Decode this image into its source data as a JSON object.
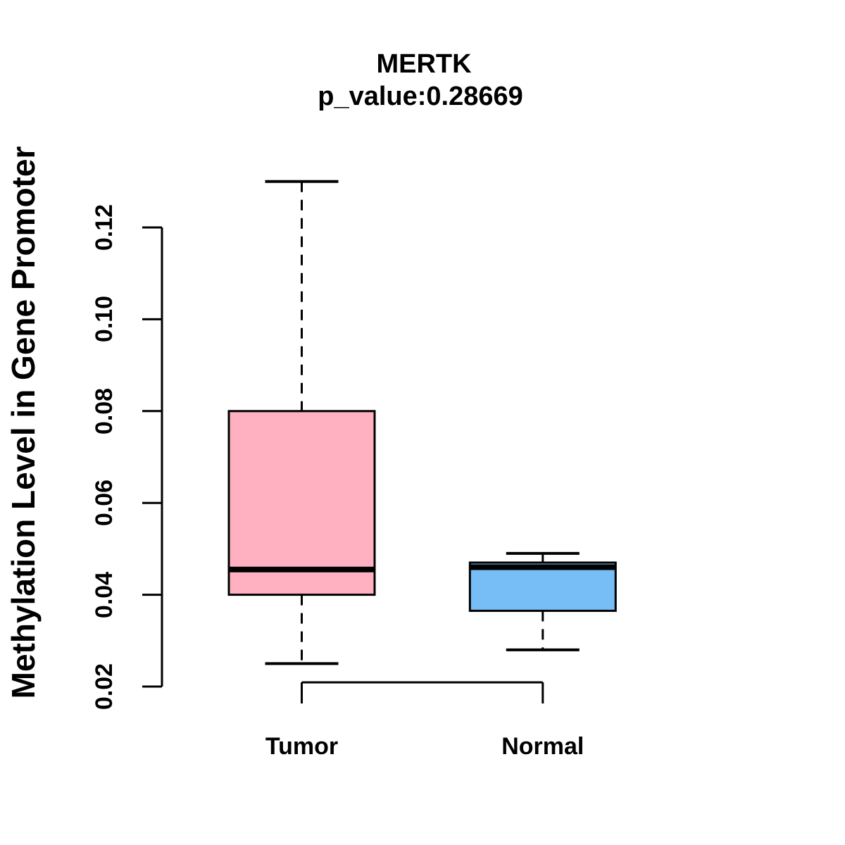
{
  "chart_data": {
    "type": "boxplot",
    "title": "MERTK",
    "subtitle": "p_value:0.28669",
    "ylabel": "Methylation Level in Gene Promoter",
    "xlabel": "",
    "ytick_labels": [
      "0.02",
      "0.04",
      "0.06",
      "0.08",
      "0.10",
      "0.12"
    ],
    "ytick_values": [
      0.02,
      0.04,
      0.06,
      0.08,
      0.1,
      0.12
    ],
    "ylim": [
      0.015,
      0.133
    ],
    "grid": false,
    "legend": null,
    "colors": {
      "background": "#FFFFFF",
      "stroke": "#000000",
      "text": "#000000",
      "tumor_fill": "#FFB1C1",
      "normal_fill": "#77BEF7"
    },
    "groups": [
      {
        "label": "Tumor",
        "fill_color": "#FFB1C1",
        "stats": {
          "lower_whisker": 0.025,
          "q1": 0.04,
          "median": 0.0455,
          "q3": 0.08,
          "upper_whisker": 0.13
        }
      },
      {
        "label": "Normal",
        "fill_color": "#77BEF7",
        "stats": {
          "lower_whisker": 0.028,
          "q1": 0.0365,
          "median": 0.046,
          "q3": 0.047,
          "upper_whisker": 0.049
        }
      }
    ]
  }
}
